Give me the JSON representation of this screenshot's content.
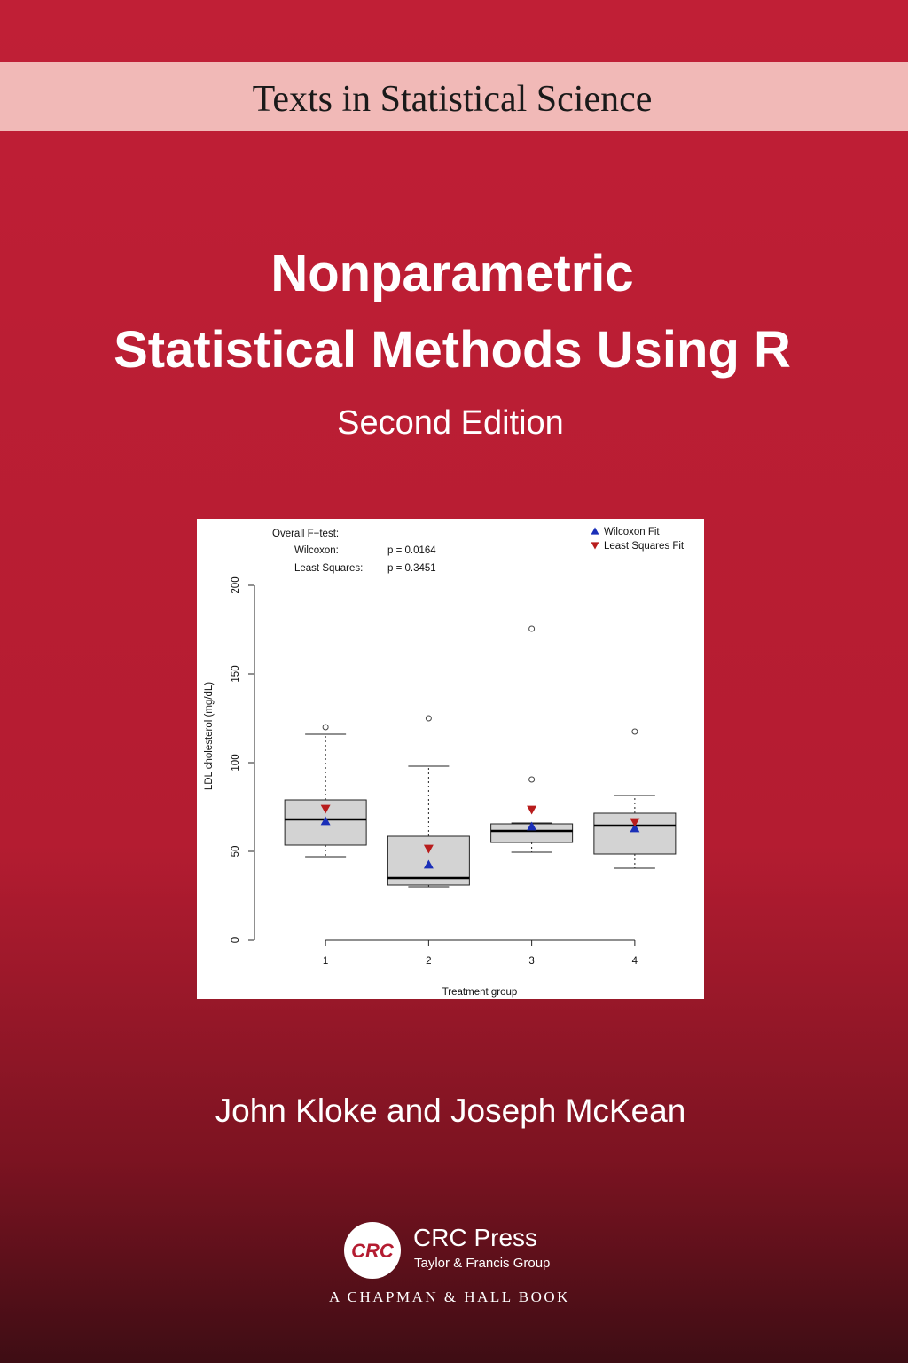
{
  "series_banner": "Texts in Statistical Science",
  "title": [
    "Nonparametric",
    "Statistical Methods Using R"
  ],
  "edition": "Second Edition",
  "authors": "John Kloke and Joseph McKean",
  "publisher": {
    "logo": "CRC",
    "name": "CRC Press",
    "group": "Taylor & Francis Group",
    "imprint": "A CHAPMAN & HALL BOOK"
  },
  "chart_data": {
    "type": "box",
    "annotations": [
      "Overall F−test:",
      "Wilcoxon:",
      "p = 0.0164",
      "Least Squares:",
      "p = 0.3451"
    ],
    "x_label": "Treatment group",
    "y_label": "LDL cholesterol (mg/dL)",
    "categories": [
      "1",
      "2",
      "3",
      "4"
    ],
    "boxes": [
      {
        "whisker_low": 47,
        "q1": 53.5,
        "median": 68,
        "q3": 79,
        "whisker_high": 116,
        "outliers": [
          120
        ]
      },
      {
        "whisker_low": 30,
        "q1": 31,
        "median": 35,
        "q3": 58.5,
        "whisker_high": 98,
        "outliers": [
          125
        ]
      },
      {
        "whisker_low": 49.5,
        "q1": 55,
        "median": 61.5,
        "q3": 65.5,
        "whisker_high": 66,
        "outliers": [
          175.5,
          90.5
        ]
      },
      {
        "whisker_low": 40.5,
        "q1": 48.5,
        "median": 64.5,
        "q3": 71.5,
        "whisker_high": 81.5,
        "outliers": [
          117.5
        ]
      }
    ],
    "series": [
      {
        "name": "Wilcoxon Fit",
        "color": "#1a2fb8",
        "marker": "triangle-up",
        "values": [
          67,
          42.5,
          64,
          63
        ]
      },
      {
        "name": "Least Squares Fit",
        "color": "#b81c1c",
        "marker": "triangle-down",
        "values": [
          74,
          51.5,
          73.5,
          66.5
        ]
      }
    ],
    "ylim": [
      0,
      200
    ],
    "yticks": [
      0,
      50,
      100,
      150,
      200
    ],
    "box_color": "#d3d3d3"
  }
}
